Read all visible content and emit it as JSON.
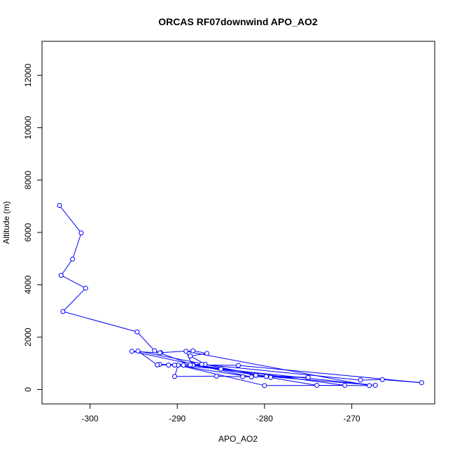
{
  "chart_data": {
    "type": "line",
    "title": "ORCAS RF07downwind APO_AO2",
    "xlabel": "APO_AO2",
    "ylabel": "Altitude (m)",
    "xlim": [
      -305.5,
      -260.5
    ],
    "ylim": [
      -550,
      13300
    ],
    "xticks": [
      -300,
      -290,
      -280,
      -270
    ],
    "xtick_labels": [
      "-300",
      "-290",
      "-280",
      "-270"
    ],
    "yticks": [
      0,
      2000,
      4000,
      6000,
      8000,
      10000,
      12000
    ],
    "ytick_labels": [
      "0",
      "2000",
      "4000",
      "6000",
      "8000",
      "10000",
      "12000"
    ],
    "grid": false,
    "legend": "none",
    "colors": {
      "series": "#0000ff",
      "frame": "#000000"
    },
    "series": [
      {
        "marker": "open-circle",
        "x": [
          -303.5,
          -301.0,
          -302.0,
          -303.3,
          -300.5,
          -303.1,
          -294.6,
          -292.6,
          -291.9,
          -288.2,
          -286.6,
          -288.5,
          -286.8,
          -289.3,
          -292.0,
          -283.0,
          -262.0,
          -266.5,
          -269.0,
          -287.2,
          -288.3,
          -289.0,
          -268.0,
          -274.0,
          -288.2,
          -270.8,
          -280.0,
          -289.9,
          -290.3,
          -285.5,
          -282.5,
          -275.0,
          -281.0,
          -279.3,
          -294.5,
          -292.3,
          -288.4,
          -291.0,
          -288.2,
          -292.0,
          -295.2,
          -281.5,
          -290.3,
          -285.0,
          -267.3,
          -279.8,
          -288.5
        ],
        "y": [
          7030,
          5980,
          4980,
          4360,
          3870,
          2980,
          2200,
          1480,
          1410,
          1480,
          1380,
          1280,
          960,
          930,
          960,
          920,
          260,
          380,
          360,
          960,
          950,
          1460,
          150,
          160,
          950,
          160,
          150,
          930,
          500,
          510,
          490,
          460,
          540,
          460,
          1470,
          940,
          940,
          930,
          930,
          1400,
          1460,
          480,
          930,
          780,
          160,
          500,
          940
        ]
      }
    ]
  }
}
